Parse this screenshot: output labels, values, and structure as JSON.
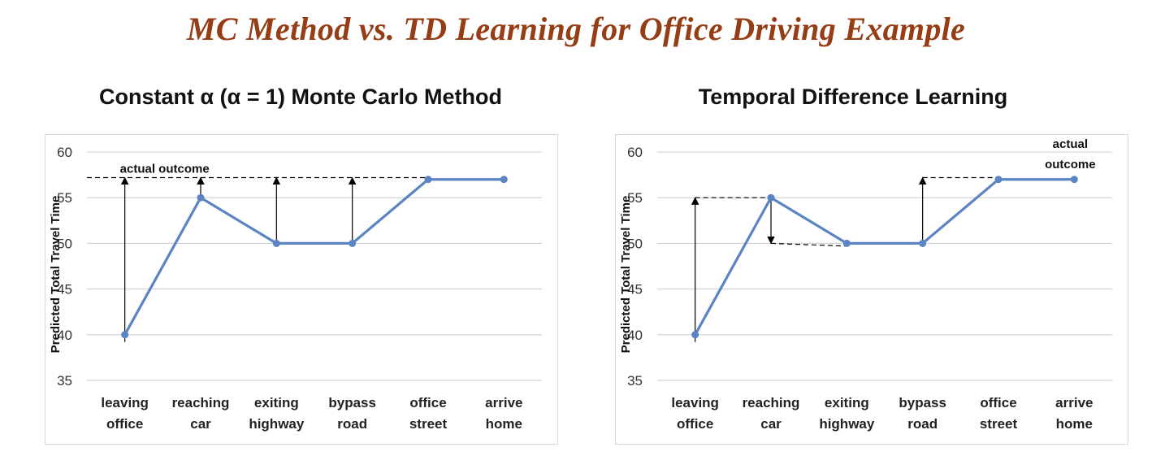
{
  "page": {
    "title": "MC Method vs. TD Learning for Office Driving Example"
  },
  "colors": {
    "title": "#953d14",
    "series": "#5b84c2",
    "grid": "#cccccc",
    "border": "#d9d9d9"
  },
  "chart_data": [
    {
      "type": "line",
      "title": "Constant α (α = 1) Monte Carlo Method",
      "ylabel": "Predicted Total Travel Time",
      "xlabel": "",
      "ylim": [
        35,
        60
      ],
      "yticks": [
        "35",
        "40",
        "45",
        "50",
        "55",
        "60"
      ],
      "grid": true,
      "categories": [
        [
          "leaving",
          "office"
        ],
        [
          "reaching",
          "car"
        ],
        [
          "exiting",
          "highway"
        ],
        [
          "bypass",
          "road"
        ],
        [
          "office",
          "street"
        ],
        [
          "arrive",
          "home"
        ]
      ],
      "series": [
        {
          "values": [
            40,
            55,
            50,
            50,
            57,
            57
          ]
        }
      ],
      "reference_line": 57.2,
      "annotation": "actual outcome",
      "arrows": [
        {
          "index": 0,
          "from": 40,
          "to": 57.2
        },
        {
          "index": 1,
          "from": 55,
          "to": 57.2
        },
        {
          "index": 2,
          "from": 50,
          "to": 57.2
        },
        {
          "index": 3,
          "from": 50,
          "to": 57.2
        }
      ]
    },
    {
      "type": "line",
      "title": "Temporal Difference Learning",
      "ylabel": "Predicted Total Travel Time",
      "xlabel": "",
      "ylim": [
        35,
        60
      ],
      "yticks": [
        "35",
        "40",
        "45",
        "50",
        "55",
        "60"
      ],
      "grid": true,
      "categories": [
        [
          "leaving",
          "office"
        ],
        [
          "reaching",
          "car"
        ],
        [
          "exiting",
          "highway"
        ],
        [
          "bypass",
          "road"
        ],
        [
          "office",
          "street"
        ],
        [
          "arrive",
          "home"
        ]
      ],
      "series": [
        {
          "values": [
            40,
            55,
            50,
            50,
            57,
            57
          ]
        }
      ],
      "annotation": [
        "actual",
        "outcome"
      ],
      "dashed_guides": [
        {
          "from_index": 0,
          "to_index": 1,
          "value": 55
        },
        {
          "from_index": 1,
          "to_index": 2,
          "value": 50
        },
        {
          "from_index": 3,
          "to_index": 4,
          "value": 57.2
        }
      ],
      "arrows": [
        {
          "index": 0,
          "from": 40,
          "to": 55
        },
        {
          "index": 1,
          "from": 55,
          "to": 50
        },
        {
          "index": 3,
          "from": 50,
          "to": 57.2
        }
      ]
    }
  ]
}
